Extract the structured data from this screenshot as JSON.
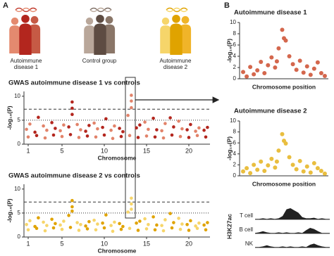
{
  "panels": [
    "A",
    "B"
  ],
  "groups": [
    "Autoimmune disease 1",
    "Control group",
    "Autoimmune disease 2"
  ],
  "chart_data": [
    {
      "type": "scatter",
      "title": "GWAS autoimmune disease 1 vs controls",
      "x_label": "Chromosome",
      "y_label": "-log₁₀(P)",
      "colors": [
        "#b3261e",
        "#e2836a"
      ],
      "xlim": [
        0.5,
        22.5
      ],
      "xticks": [
        1,
        5,
        10,
        15,
        20
      ],
      "ylim": [
        0,
        11
      ],
      "yticks": [
        0,
        5,
        10
      ],
      "sig_lines": [
        7.3,
        5
      ],
      "sig_line_styles": [
        "dashed",
        "dotted"
      ],
      "x": [
        1,
        2,
        3,
        4,
        5,
        6,
        7,
        8,
        9,
        10,
        11,
        12,
        13,
        14,
        15,
        16,
        17,
        18,
        19,
        20,
        21,
        22,
        0.8,
        1.2,
        1.8,
        2.2,
        2.8,
        3.2,
        3.8,
        4.2,
        4.8,
        5.2,
        5.8,
        6.2,
        6.8,
        7.2,
        7.8,
        8.2,
        8.8,
        9.2,
        9.8,
        10.2,
        10.8,
        11.2,
        11.8,
        12.2,
        12.8,
        13.2,
        13.8,
        14.2,
        14.8,
        15.2,
        15.8,
        16.2,
        16.8,
        17.2,
        17.8,
        18.2,
        18.8,
        19.2,
        19.8,
        20.2,
        20.8,
        21.2,
        21.8,
        22.2,
        6.2,
        6.2,
        13.2,
        13.2
      ],
      "values": [
        1.5,
        1.8,
        1.3,
        1.9,
        1.6,
        2.0,
        1.4,
        1.7,
        1.5,
        1.9,
        1.2,
        1.6,
        1.8,
        1.4,
        1.7,
        1.5,
        1.3,
        1.9,
        1.6,
        1.4,
        1.8,
        1.5,
        3.1,
        4.2,
        2.5,
        5.6,
        3.8,
        2.9,
        4.5,
        3.3,
        2.8,
        4.0,
        3.6,
        8.8,
        4.1,
        3.0,
        2.7,
        3.9,
        4.4,
        3.2,
        3.5,
        5.3,
        2.9,
        3.8,
        3.3,
        2.6,
        6.0,
        10.2,
        3.4,
        4.0,
        4.6,
        3.1,
        5.4,
        3.0,
        2.8,
        4.3,
        5.5,
        3.6,
        4.8,
        3.2,
        3.0,
        4.1,
        2.7,
        3.4,
        2.9,
        3.5,
        7.5,
        6.2,
        9.0,
        7.6
      ]
    },
    {
      "type": "scatter",
      "title": "GWAS autoimmune disease 2 vs controls",
      "x_label": "Chromosome",
      "y_label": "-log₁₀(P)",
      "colors": [
        "#e0a300",
        "#f6d56a"
      ],
      "xlim": [
        0.5,
        22.5
      ],
      "xticks": [
        1,
        5,
        10,
        15,
        20
      ],
      "ylim": [
        0,
        11
      ],
      "yticks": [
        0,
        5,
        10
      ],
      "sig_lines": [
        7.3,
        5
      ],
      "sig_line_styles": [
        "dashed",
        "dotted"
      ],
      "x": [
        1,
        2,
        3,
        4,
        5,
        6,
        7,
        8,
        9,
        10,
        11,
        12,
        13,
        14,
        15,
        16,
        17,
        18,
        19,
        20,
        21,
        22,
        0.8,
        1.2,
        1.8,
        2.2,
        2.8,
        3.2,
        3.8,
        4.2,
        4.8,
        5.2,
        5.8,
        6.2,
        6.8,
        7.2,
        7.8,
        8.2,
        8.8,
        9.2,
        9.8,
        10.2,
        10.8,
        11.2,
        11.8,
        12.2,
        12.8,
        13.2,
        13.8,
        14.2,
        14.8,
        15.2,
        15.8,
        16.2,
        16.8,
        17.2,
        17.8,
        18.2,
        18.8,
        19.2,
        19.8,
        20.2,
        20.8,
        21.2,
        21.8,
        22.2,
        6.2,
        6.2,
        13.2,
        13.2
      ],
      "values": [
        1.5,
        1.8,
        1.3,
        1.9,
        1.6,
        2.0,
        1.4,
        1.7,
        1.5,
        1.9,
        1.2,
        1.6,
        1.8,
        1.4,
        1.7,
        1.5,
        1.3,
        1.9,
        1.6,
        1.4,
        1.8,
        1.5,
        2.6,
        3.4,
        2.2,
        4.0,
        3.1,
        2.4,
        3.7,
        2.8,
        2.5,
        3.3,
        4.5,
        7.6,
        3.0,
        2.6,
        2.3,
        3.2,
        3.5,
        2.7,
        2.9,
        4.6,
        2.4,
        3.1,
        2.8,
        2.2,
        5.2,
        8.1,
        2.9,
        3.3,
        3.8,
        2.6,
        4.2,
        2.5,
        2.4,
        3.6,
        4.9,
        3.0,
        3.9,
        2.7,
        2.6,
        3.4,
        2.3,
        2.9,
        2.5,
        3.0,
        6.3,
        5.4,
        6.9,
        5.8
      ]
    },
    {
      "type": "scatter",
      "title": "Autoimmune disease 1",
      "x_label": "Chromosome position",
      "y_label": "-log₁₀(P)",
      "color": "#d4674d",
      "xlim": [
        0,
        25
      ],
      "ylim": [
        0,
        10
      ],
      "yticks": [
        0,
        2,
        4,
        6,
        8,
        10
      ],
      "x": [
        1,
        2,
        3,
        4,
        5,
        6,
        7,
        8,
        9,
        10,
        11,
        12,
        13,
        14,
        15,
        16,
        17,
        18,
        19,
        20,
        21,
        22,
        23,
        24,
        12.5,
        10.5
      ],
      "values": [
        1.2,
        0.4,
        2.1,
        0.8,
        1.5,
        3.0,
        1.0,
        2.4,
        3.8,
        2.0,
        5.4,
        8.7,
        6.8,
        4.0,
        2.6,
        1.6,
        3.2,
        1.1,
        2.2,
        0.7,
        1.8,
        2.9,
        1.0,
        0.5,
        7.2,
        3.1
      ]
    },
    {
      "type": "scatter",
      "title": "Autoimmune disease 2",
      "x_label": "Chromosome position",
      "y_label": "-log₁₀(P)",
      "color": "#e9be3f",
      "xlim": [
        0,
        25
      ],
      "ylim": [
        0,
        10
      ],
      "yticks": [
        0,
        2,
        4,
        6,
        8,
        10
      ],
      "x": [
        1,
        2,
        3,
        4,
        5,
        6,
        7,
        8,
        9,
        10,
        11,
        12,
        13,
        14,
        15,
        16,
        17,
        18,
        19,
        20,
        21,
        22,
        23,
        24,
        12.5,
        10.5
      ],
      "values": [
        0.8,
        1.4,
        0.5,
        2.0,
        1.1,
        2.6,
        0.9,
        1.9,
        3.1,
        1.5,
        4.6,
        7.6,
        5.9,
        3.4,
        2.0,
        1.2,
        2.7,
        0.8,
        1.7,
        0.6,
        2.3,
        1.4,
        0.9,
        0.4,
        6.4,
        2.6
      ]
    },
    {
      "type": "area",
      "y_label": "H3K27ac",
      "ylim": [
        0,
        1
      ],
      "series": [
        {
          "name": "T cell",
          "color": "#222222",
          "values": [
            0.05,
            0.05,
            0.1,
            0.05,
            0.1,
            0.05,
            0.1,
            0.3,
            0.9,
            1.0,
            0.8,
            0.6,
            0.2,
            0.1,
            0.1,
            0.15,
            0.05,
            0.1,
            0.05,
            0.05
          ]
        },
        {
          "name": "B cell",
          "color": "#222222",
          "values": [
            0.05,
            0.1,
            0.2,
            0.1,
            0.05,
            0.05,
            0.1,
            0.05,
            0.1,
            0.05,
            0.05,
            0.1,
            0.05,
            0.3,
            0.5,
            0.4,
            0.2,
            0.05,
            0.05,
            0.05
          ]
        },
        {
          "name": "NK",
          "color": "#222222",
          "values": [
            0.05,
            0.05,
            0.1,
            0.2,
            0.1,
            0.05,
            0.05,
            0.1,
            0.05,
            0.1,
            0.05,
            0.05,
            0.1,
            0.05,
            0.25,
            0.35,
            0.2,
            0.1,
            0.05,
            0.05
          ]
        }
      ]
    }
  ]
}
